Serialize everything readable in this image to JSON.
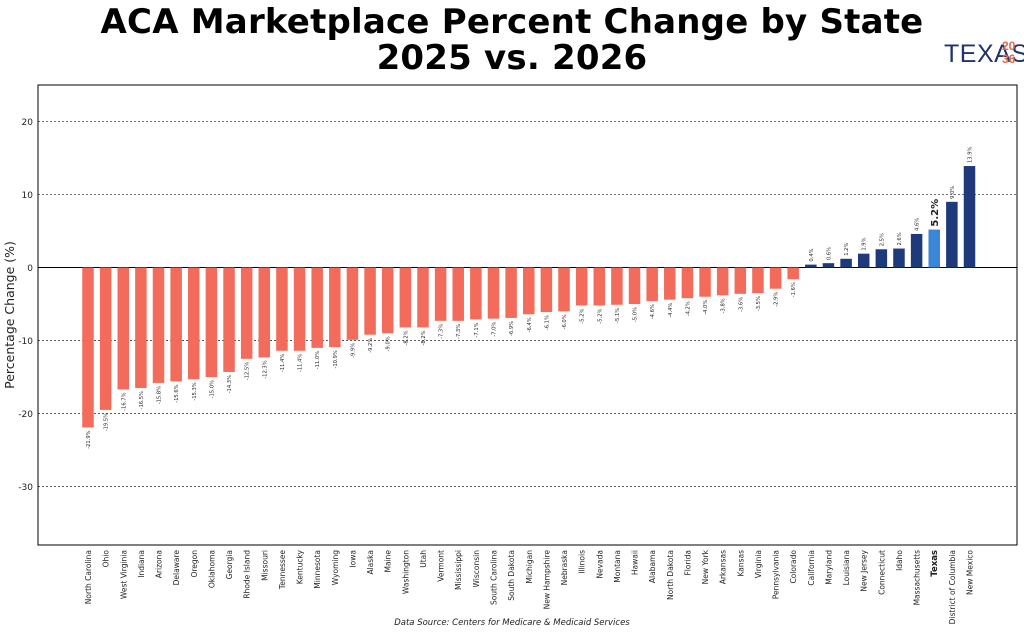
{
  "title_line1": "ACA Marketplace Percent Change by State",
  "title_line2": "2025 vs. 2026",
  "logo": {
    "word": "TEXAS",
    "year_top": "20",
    "year_bottom": "36"
  },
  "source": "Data Source: Centers for Medicare & Medicaid Services",
  "colors": {
    "negative": "#f26b5b",
    "positive": "#1f3a7a",
    "highlight": "#3a86d8"
  },
  "chart_data": {
    "type": "bar",
    "title": "ACA Marketplace Percent Change by State 2025 vs. 2026",
    "xlabel": "",
    "ylabel": "Percentage Change (%)",
    "ylim": [
      -38,
      25
    ],
    "yticks": [
      -30,
      -20,
      -10,
      0,
      10,
      20
    ],
    "grid": "horizontal dashed",
    "highlight_category": "Texas",
    "categories": [
      "North Carolina",
      "Ohio",
      "West Virginia",
      "Indiana",
      "Arizona",
      "Delaware",
      "Oregon",
      "Oklahoma",
      "Georgia",
      "Rhode Island",
      "Missouri",
      "Tennessee",
      "Kentucky",
      "Minnesota",
      "Wyoming",
      "Iowa",
      "Alaska",
      "Maine",
      "Washington",
      "Utah",
      "Vermont",
      "Mississippi",
      "Wisconsin",
      "South Carolina",
      "South Dakota",
      "Michigan",
      "New Hampshire",
      "Nebraska",
      "Illinois",
      "Nevada",
      "Montana",
      "Hawaii",
      "Alabama",
      "North Dakota",
      "Florida",
      "New York",
      "Arkansas",
      "Kansas",
      "Virginia",
      "Pennsylvania",
      "Colorado",
      "California",
      "Maryland",
      "Louisiana",
      "New Jersey",
      "Connecticut",
      "Idaho",
      "Massachusetts",
      "Texas",
      "District of Columbia",
      "New Mexico"
    ],
    "values": [
      -21.9,
      -19.5,
      -16.7,
      -16.5,
      -15.8,
      -15.6,
      -15.3,
      -15.0,
      -14.3,
      -12.5,
      -12.3,
      -11.4,
      -11.4,
      -11.0,
      -10.9,
      -9.9,
      -9.2,
      -9.0,
      -8.2,
      -8.2,
      -7.3,
      -7.3,
      -7.1,
      -7.0,
      -6.9,
      -6.4,
      -6.1,
      -6.0,
      -5.2,
      -5.2,
      -5.1,
      -5.0,
      -4.6,
      -4.4,
      -4.2,
      -4.0,
      -3.8,
      -3.6,
      -3.5,
      -2.9,
      -1.6,
      0.4,
      0.6,
      1.2,
      1.9,
      2.5,
      2.6,
      4.6,
      5.2,
      9.0,
      13.9
    ],
    "data_labels": [
      "-21.9%",
      "-19.5%",
      "-16.7%",
      "-16.5%",
      "-15.8%",
      "-15.6%",
      "-15.3%",
      "-15.0%",
      "-14.3%",
      "-12.5%",
      "-12.3%",
      "-11.4%",
      "-11.4%",
      "-11.0%",
      "-10.9%",
      "-9.9%",
      "-9.2%",
      "-9.0%",
      "-8.2%",
      "-8.2%",
      "-7.3%",
      "-7.3%",
      "-7.1%",
      "-7.0%",
      "-6.9%",
      "-6.4%",
      "-6.1%",
      "-6.0%",
      "-5.2%",
      "-5.2%",
      "-5.1%",
      "-5.0%",
      "-4.6%",
      "-4.4%",
      "-4.2%",
      "-4.0%",
      "-3.8%",
      "-3.6%",
      "-3.5%",
      "-2.9%",
      "-1.6%",
      "0.4%",
      "0.6%",
      "1.2%",
      "1.9%",
      "2.5%",
      "2.6%",
      "4.6%",
      "5.2%",
      "9.0%",
      "13.9%"
    ]
  }
}
